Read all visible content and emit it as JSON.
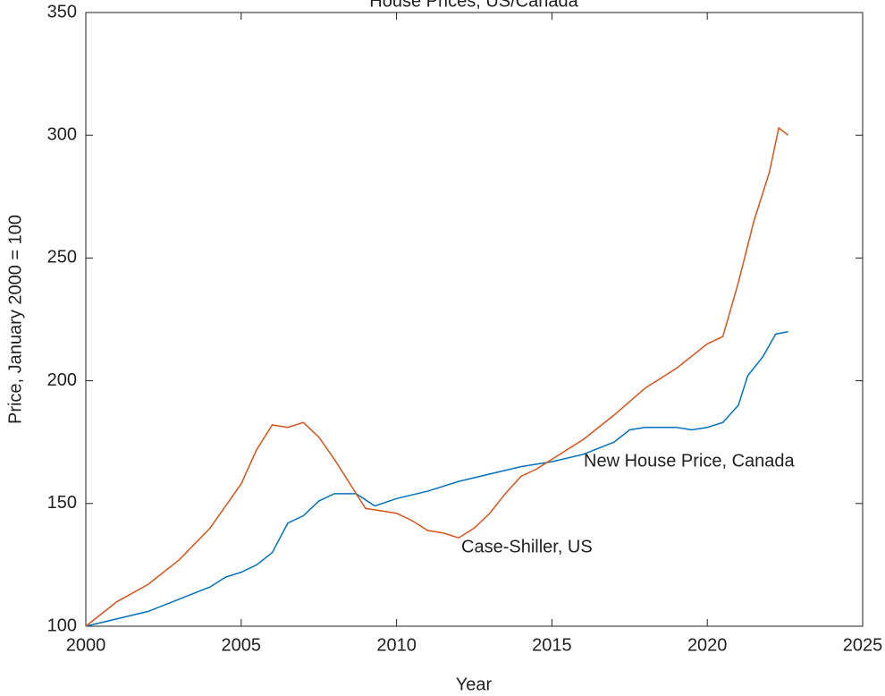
{
  "chart_data": {
    "type": "line",
    "title": "House Prices, US/Canada",
    "xlabel": "Year",
    "ylabel": "Price, January 2000 = 100",
    "xlim": [
      2000,
      2025
    ],
    "xticks": [
      2000,
      2005,
      2010,
      2015,
      2020,
      2025
    ],
    "ylim": [
      100,
      350
    ],
    "yticks": [
      100,
      150,
      200,
      250,
      300,
      350
    ],
    "annotations": [
      "New House Price, Canada",
      "Case-Shiller, US"
    ],
    "series": [
      {
        "name": "New House Price, Canada",
        "color": "#0072bd",
        "x": [
          2000,
          2001,
          2002,
          2003,
          2004,
          2004.5,
          2005,
          2005.5,
          2006,
          2006.5,
          2007,
          2007.5,
          2008,
          2008.7,
          2009.3,
          2010,
          2011,
          2012,
          2013,
          2014,
          2015,
          2016,
          2017,
          2017.5,
          2018,
          2019,
          2019.5,
          2020,
          2020.5,
          2021,
          2021.3,
          2021.8,
          2022.2,
          2022.6
        ],
        "values": [
          100,
          103,
          106,
          111,
          116,
          120,
          122,
          125,
          130,
          142,
          145,
          151,
          154,
          154,
          149,
          152,
          155,
          159,
          162,
          165,
          167,
          170,
          175,
          180,
          181,
          181,
          180,
          181,
          183,
          190,
          202,
          210,
          219,
          220
        ]
      },
      {
        "name": "Case-Shiller, US",
        "color": "#d95319",
        "x": [
          2000,
          2001,
          2002,
          2003,
          2004,
          2005,
          2005.5,
          2006,
          2006.5,
          2007,
          2007.5,
          2008,
          2008.5,
          2009,
          2009.5,
          2010,
          2010.5,
          2011,
          2011.5,
          2012,
          2012.5,
          2013,
          2013.5,
          2014,
          2014.5,
          2015,
          2016,
          2017,
          2018,
          2019,
          2019.5,
          2020,
          2020.5,
          2021,
          2021.5,
          2022,
          2022.3,
          2022.6
        ],
        "values": [
          100,
          110,
          117,
          127,
          140,
          158,
          172,
          182,
          181,
          183,
          177,
          168,
          158,
          148,
          147,
          146,
          143,
          139,
          138,
          136,
          140,
          146,
          154,
          161,
          164,
          168,
          176,
          186,
          197,
          205,
          210,
          215,
          218,
          240,
          265,
          285,
          303,
          300
        ]
      }
    ]
  }
}
